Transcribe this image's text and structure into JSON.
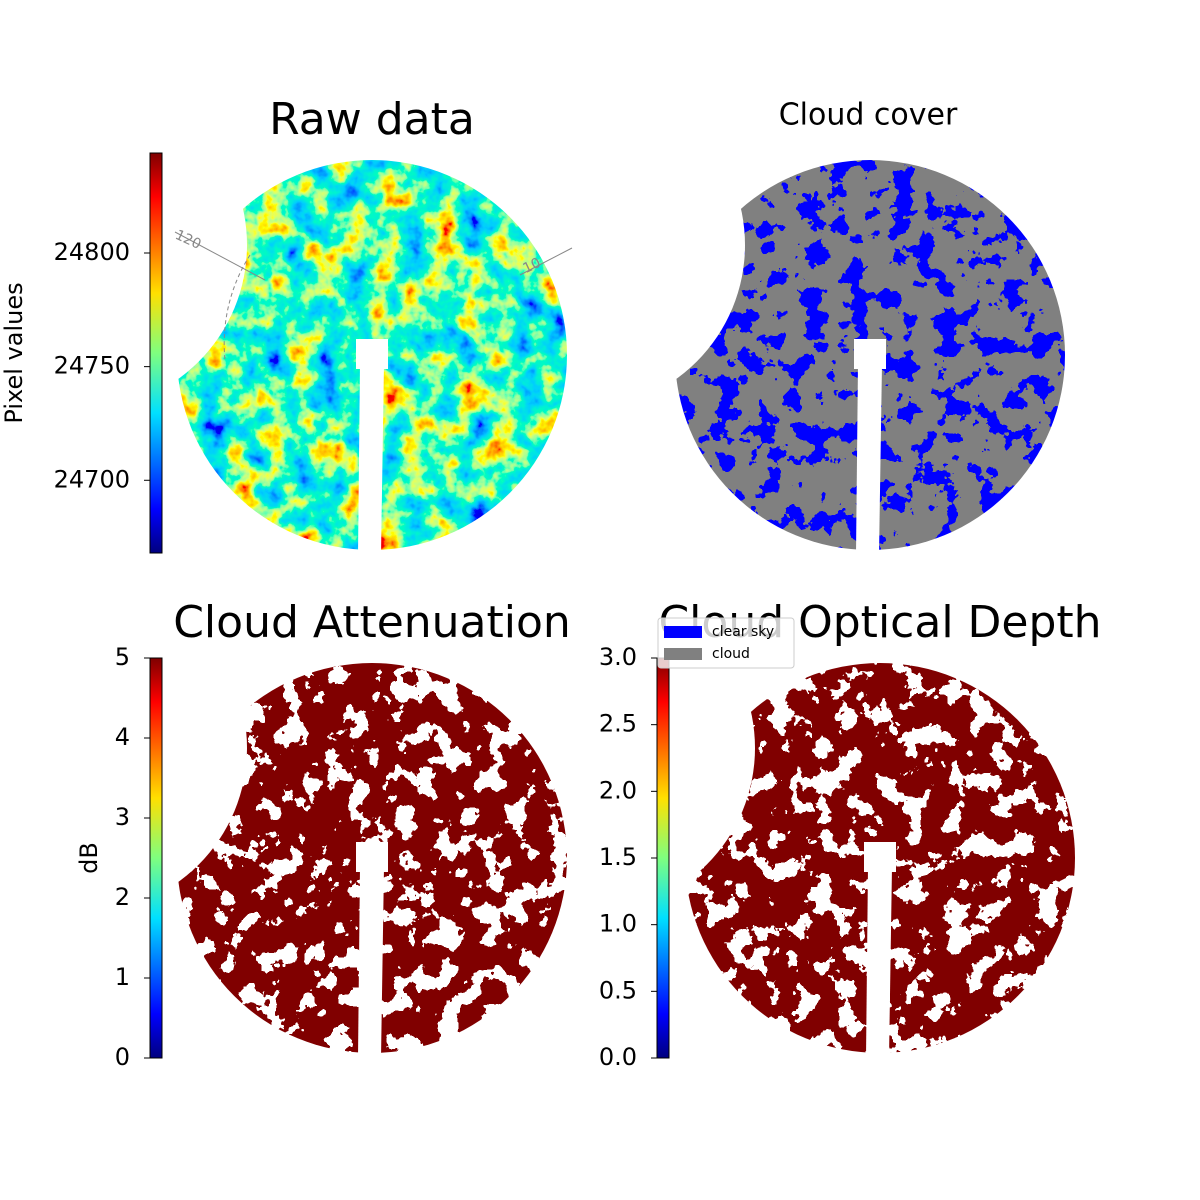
{
  "chart_data": [
    {
      "type": "image",
      "title": "Raw data",
      "colormap": "jet",
      "texture": "continuous",
      "colorbar": {
        "label": "Pixel values",
        "lim": [
          24668,
          24844
        ],
        "ticks": [
          24700,
          24750,
          24800
        ]
      },
      "annotations": [
        "120",
        "10"
      ]
    },
    {
      "type": "image",
      "title": "Cloud cover",
      "texture": "mask",
      "background": "#808080",
      "foreground": "#0000ff",
      "legend": [
        {
          "name": "clear sky",
          "color": "#0000ff"
        },
        {
          "name": "cloud",
          "color": "#808080"
        }
      ]
    },
    {
      "type": "image",
      "title": "Cloud Attenuation",
      "colormap": "jet",
      "texture": "mask",
      "background": "#800000",
      "foreground": "#ffffff",
      "colorbar": {
        "label": "dB",
        "lim": [
          0,
          5
        ],
        "ticks": [
          0,
          1,
          2,
          3,
          4,
          5
        ]
      }
    },
    {
      "type": "image",
      "title": "Cloud Optical Depth",
      "colormap": "jet",
      "texture": "mask",
      "background": "#800000",
      "foreground": "#ffffff",
      "colorbar": {
        "lim": [
          0,
          3
        ],
        "ticks": [
          {
            "value": 0,
            "label": "0.0"
          },
          0.5,
          {
            "value": 1,
            "label": "1.0"
          },
          1.5,
          {
            "value": 2,
            "label": "2.0"
          },
          2.5,
          {
            "value": 3,
            "label": "3.0"
          }
        ]
      }
    }
  ]
}
